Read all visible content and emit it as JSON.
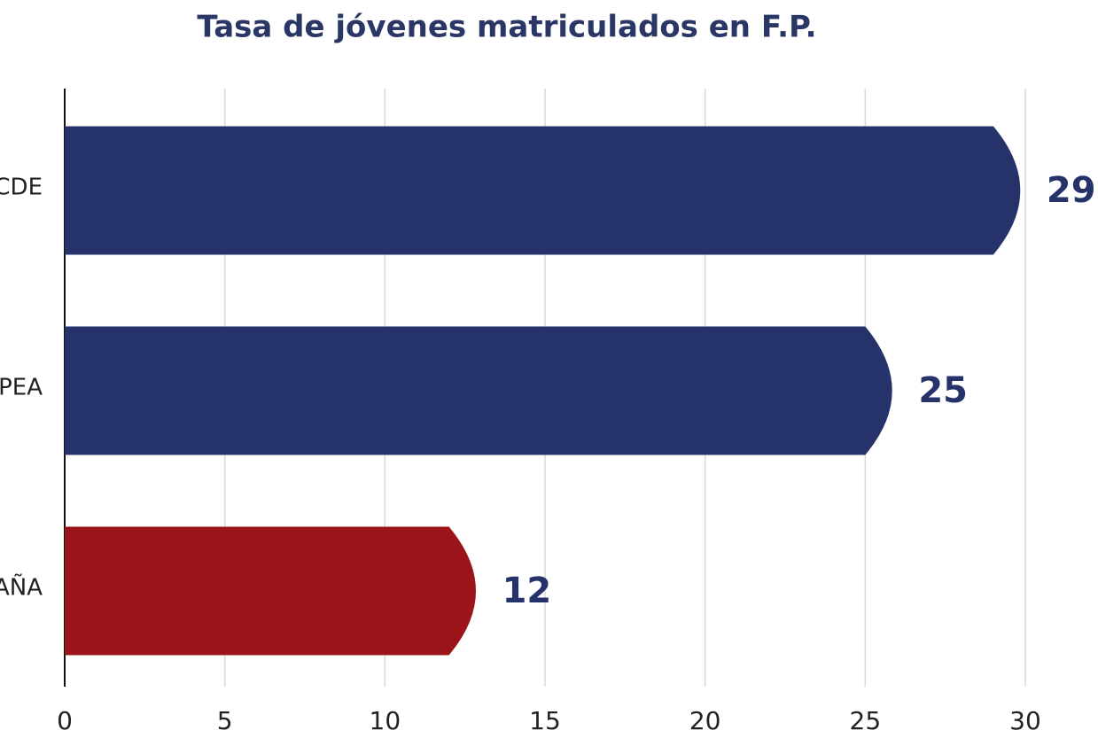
{
  "chart_data": {
    "type": "barh",
    "title": "Tasa de jóvenes matriculados en F.P.",
    "categories": [
      "CDE",
      "PEA",
      "AÑA"
    ],
    "values": [
      29,
      25,
      12
    ],
    "colors": [
      "#26336b",
      "#26336b",
      "#9b1419"
    ],
    "xlim": [
      0,
      30
    ],
    "xticks": [
      0,
      5,
      10,
      15,
      20,
      25,
      30
    ],
    "grid": true
  }
}
